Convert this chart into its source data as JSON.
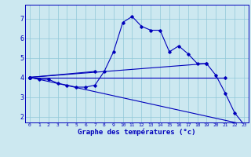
{
  "background_color": "#cce8f0",
  "grid_color": "#90c8d8",
  "line_color": "#0000bb",
  "xlabel": "Graphe des températures (°c)",
  "hours": [
    0,
    1,
    2,
    3,
    4,
    5,
    6,
    7,
    8,
    9,
    10,
    11,
    12,
    13,
    14,
    15,
    16,
    17,
    18,
    19,
    20,
    21,
    22,
    23
  ],
  "temp_curve": [
    4.0,
    3.9,
    3.9,
    3.7,
    3.6,
    3.5,
    3.5,
    3.6,
    4.3,
    5.3,
    6.8,
    7.1,
    6.6,
    6.4,
    6.4,
    5.3,
    5.6,
    5.2,
    4.7,
    4.7,
    4.1,
    3.2,
    2.2,
    1.6
  ],
  "ref_lines": [
    {
      "x": [
        0,
        7
      ],
      "y": [
        4.0,
        4.3
      ]
    },
    {
      "x": [
        0,
        19
      ],
      "y": [
        4.0,
        4.7
      ]
    },
    {
      "x": [
        0,
        21
      ],
      "y": [
        4.0,
        4.0
      ]
    },
    {
      "x": [
        0,
        23
      ],
      "y": [
        4.0,
        1.6
      ]
    }
  ],
  "yticks": [
    2,
    3,
    4,
    5,
    6,
    7
  ],
  "xticks": [
    0,
    1,
    2,
    3,
    4,
    5,
    6,
    7,
    8,
    9,
    10,
    11,
    12,
    13,
    14,
    15,
    16,
    17,
    18,
    19,
    20,
    21,
    22,
    23
  ],
  "ylim": [
    1.7,
    7.7
  ],
  "xlim": [
    -0.5,
    23.5
  ]
}
